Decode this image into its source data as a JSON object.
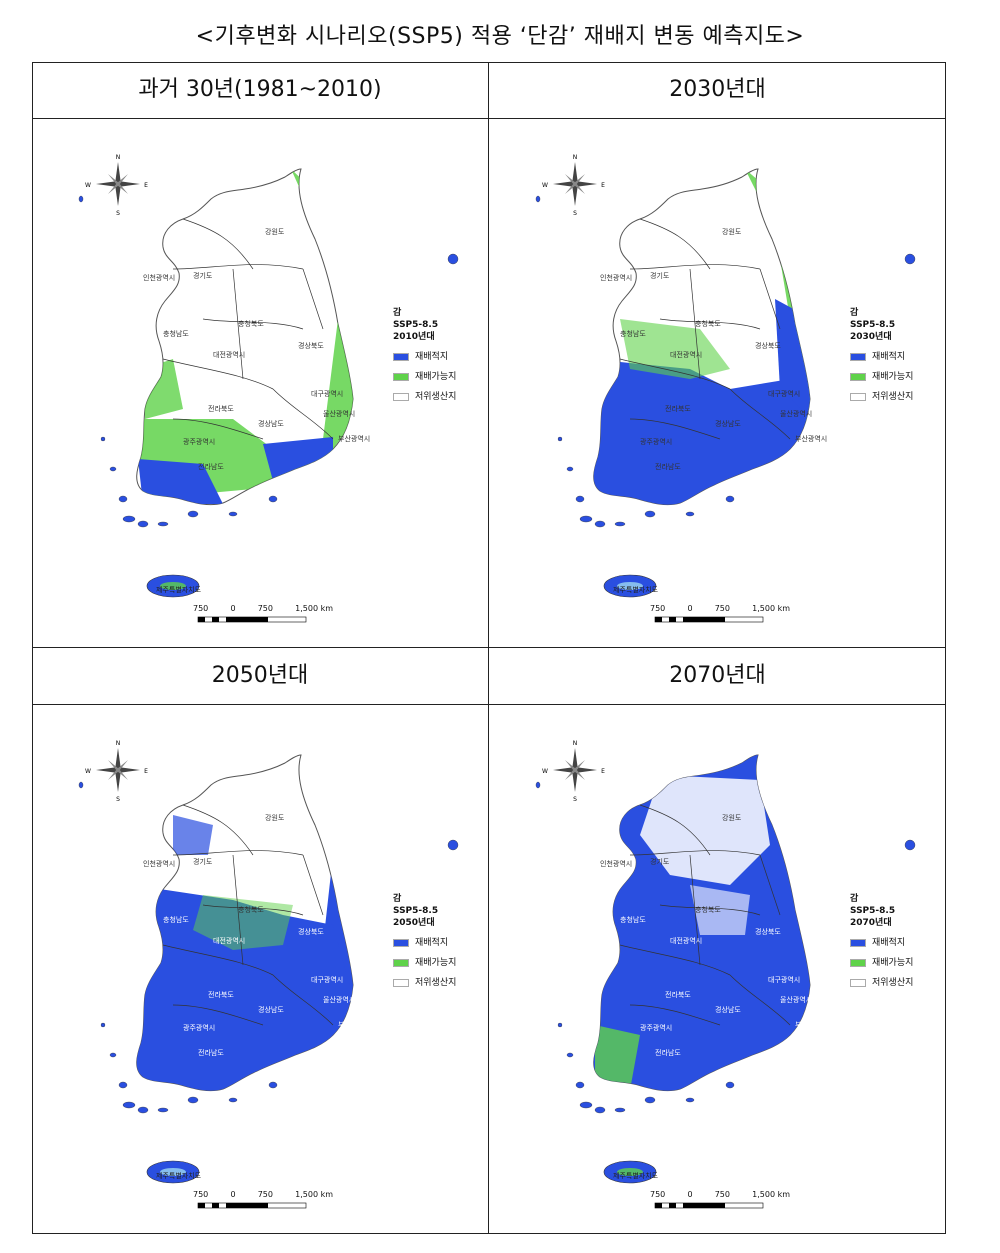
{
  "title": "<기후변화 시나리오(SSP5) 적용 ‘단감’ 재배지 변동 예측지도>",
  "colors": {
    "suitable": "#2a4fe0",
    "possible": "#5fd24a",
    "low": "#ffffff"
  },
  "panels": [
    {
      "heading": "과거 30년(1981~2010)",
      "legend": {
        "crop": "감",
        "scenario": "SSP5-8.5",
        "period": "2010년대",
        "items": [
          "재배적지",
          "재배가능지",
          "저위생산지"
        ]
      },
      "level": "low"
    },
    {
      "heading": "2030년대",
      "legend": {
        "crop": "감",
        "scenario": "SSP5-8.5",
        "period": "2030년대",
        "items": [
          "재배적지",
          "재배가능지",
          "저위생산지"
        ]
      },
      "level": "mid"
    },
    {
      "heading": "2050년대",
      "legend": {
        "crop": "감",
        "scenario": "SSP5-8.5",
        "period": "2050년대",
        "items": [
          "재배적지",
          "재배가능지",
          "저위생산지"
        ]
      },
      "level": "high"
    },
    {
      "heading": "2070년대",
      "legend": {
        "crop": "감",
        "scenario": "SSP5-8.5",
        "period": "2070년대",
        "items": [
          "재배적지",
          "재배가능지",
          "저위생산지"
        ]
      },
      "level": "max"
    }
  ],
  "map_labels": {
    "gangwon": "강원도",
    "incheon": "인천광역시",
    "gyeonggi": "경기도",
    "chungnam": "충청남도",
    "chungbuk": "충청북도",
    "daejeon": "대전광역시",
    "gyeongbuk": "경상북도",
    "jeonbuk": "전라북도",
    "daegu": "대구광역시",
    "ulsan": "울산광역시",
    "gyeongnam": "경상남도",
    "busan": "부산광역시",
    "gwangju": "광주광역시",
    "jeonnam": "전라남도",
    "jeju": "제주특별자치도"
  },
  "compass": {
    "n": "N",
    "s": "S",
    "e": "E",
    "w": "W"
  },
  "scale": {
    "labels": [
      "750",
      "0",
      "750",
      "1,500 km"
    ]
  }
}
